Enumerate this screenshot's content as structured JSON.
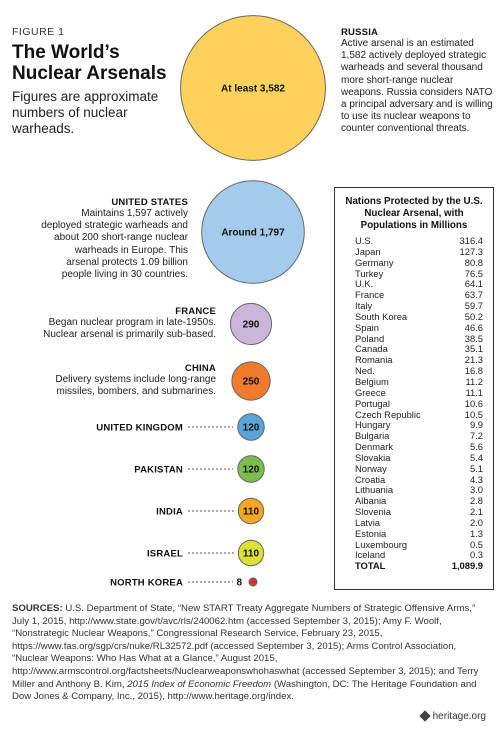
{
  "figure_label": "FIGURE 1",
  "title_line1": "The World’s",
  "title_line2": "Nuclear Arsenals",
  "subtitle": "Figures are approximate numbers of nuclear warheads.",
  "notes": {
    "russia": {
      "title": "RUSSIA",
      "text": "Active arsenal is an estimated 1,582 actively deployed strategic warheads and several thousand more short-range nuclear weapons. Russia considers NATO a principal adversary and is willing to use its nuclear weapons to counter conventional threats."
    },
    "united_states": {
      "title": "UNITED STATES",
      "text": "Maintains 1,597 actively deployed strategic warheads and about 200 short-range nuclear warheads in Europe. This arsenal protects 1.09 billion people living in 30 countries."
    },
    "france": {
      "title": "FRANCE",
      "text": "Began nuclear program in late-1950s. Nuclear arsenal is primarily sub-based."
    },
    "china": {
      "title": "CHINA",
      "text": "Delivery systems include long-range missiles, bombers, and submarines."
    }
  },
  "chart_data": {
    "type": "bubble",
    "title": "The World’s Nuclear Arsenals",
    "subtitle": "Figures are approximate numbers of nuclear warheads.",
    "series": [
      {
        "country": "RUSSIA",
        "value": 3582,
        "label": "At least 3,582",
        "color": "#fcd25c"
      },
      {
        "country": "UNITED STATES",
        "value": 1797,
        "label": "Around 1,797",
        "color": "#a4cbeb"
      },
      {
        "country": "FRANCE",
        "value": 290,
        "label": "290",
        "color": "#c9b6da"
      },
      {
        "country": "CHINA",
        "value": 250,
        "label": "250",
        "color": "#f27a2e"
      },
      {
        "country": "UNITED KINGDOM",
        "value": 120,
        "label": "120",
        "color": "#5aa4da"
      },
      {
        "country": "PAKISTAN",
        "value": 120,
        "label": "120",
        "color": "#7cbd50"
      },
      {
        "country": "INDIA",
        "value": 110,
        "label": "110",
        "color": "#f5a623"
      },
      {
        "country": "ISRAEL",
        "value": 110,
        "label": "110",
        "color": "#dbe233"
      },
      {
        "country": "NORTH KOREA",
        "value": 8,
        "label": "8",
        "color": "#c53a32"
      }
    ]
  },
  "protected_table": {
    "title": "Nations Protected by the U.S. Nuclear Arsenal, with Populations in Millions",
    "rows": [
      {
        "name": "U.S.",
        "value": "316.4"
      },
      {
        "name": "Japan",
        "value": "127.3"
      },
      {
        "name": "Germany",
        "value": "80.8"
      },
      {
        "name": "Turkey",
        "value": "76.5"
      },
      {
        "name": "U.K.",
        "value": "64.1"
      },
      {
        "name": "France",
        "value": "63.7"
      },
      {
        "name": "Italy",
        "value": "59.7"
      },
      {
        "name": "South Korea",
        "value": "50.2"
      },
      {
        "name": "Spain",
        "value": "46.6"
      },
      {
        "name": "Poland",
        "value": "38.5"
      },
      {
        "name": "Canada",
        "value": "35.1"
      },
      {
        "name": "Romania",
        "value": "21.3"
      },
      {
        "name": "Ned.",
        "value": "16.8"
      },
      {
        "name": "Belgium",
        "value": "11.2"
      },
      {
        "name": "Greece",
        "value": "11.1"
      },
      {
        "name": "Portugal",
        "value": "10.6"
      },
      {
        "name": "Czech Republic",
        "value": "10.5"
      },
      {
        "name": "Hungary",
        "value": "9.9"
      },
      {
        "name": "Bulgaria",
        "value": "7.2"
      },
      {
        "name": "Denmark",
        "value": "5.6"
      },
      {
        "name": "Slovakia",
        "value": "5.4"
      },
      {
        "name": "Norway",
        "value": "5.1"
      },
      {
        "name": "Croatia",
        "value": "4.3"
      },
      {
        "name": "Lithuania",
        "value": "3.0"
      },
      {
        "name": "Albania",
        "value": "2.8"
      },
      {
        "name": "Slovenia",
        "value": "2.1"
      },
      {
        "name": "Latvia",
        "value": "2.0"
      },
      {
        "name": "Estonia",
        "value": "1.3"
      },
      {
        "name": "Luxembourg",
        "value": "0.5"
      },
      {
        "name": "Iceland",
        "value": "0.3"
      }
    ],
    "total": {
      "name": "TOTAL",
      "value": "1,089.9"
    }
  },
  "sources": {
    "label": "SOURCES:",
    "text_before_italic": "U.S. Department of State, “New START Treaty Aggregate Numbers of Strategic Offensive Arms,” July 1, 2015, http://www.state.gov/t/avc/rls/240062.htm (accessed September 3, 2015); Amy F. Woolf, “Nonstrategic Nuclear Weapons,” Congressional Research Service, February 23, 2015, https://www.fas.org/sgp/crs/nuke/RL32572.pdf (accessed September 3, 2015); Arms Control Association, “Nuclear Weapons: Who Has What at a Glance,” August 2015, http://www.armscontrol.org/factsheets/Nuclearweaponswhohaswhat (accessed September 3, 2015); and Terry Miller and Anthony B. Kim, ",
    "italic": "2015 Index of Economic Freedom",
    "text_after_italic": " (Washington, DC: The Heritage Foundation and Dow Jones & Company, Inc., 2015), http://www.heritage.org/index."
  },
  "credit": "heritage.org"
}
